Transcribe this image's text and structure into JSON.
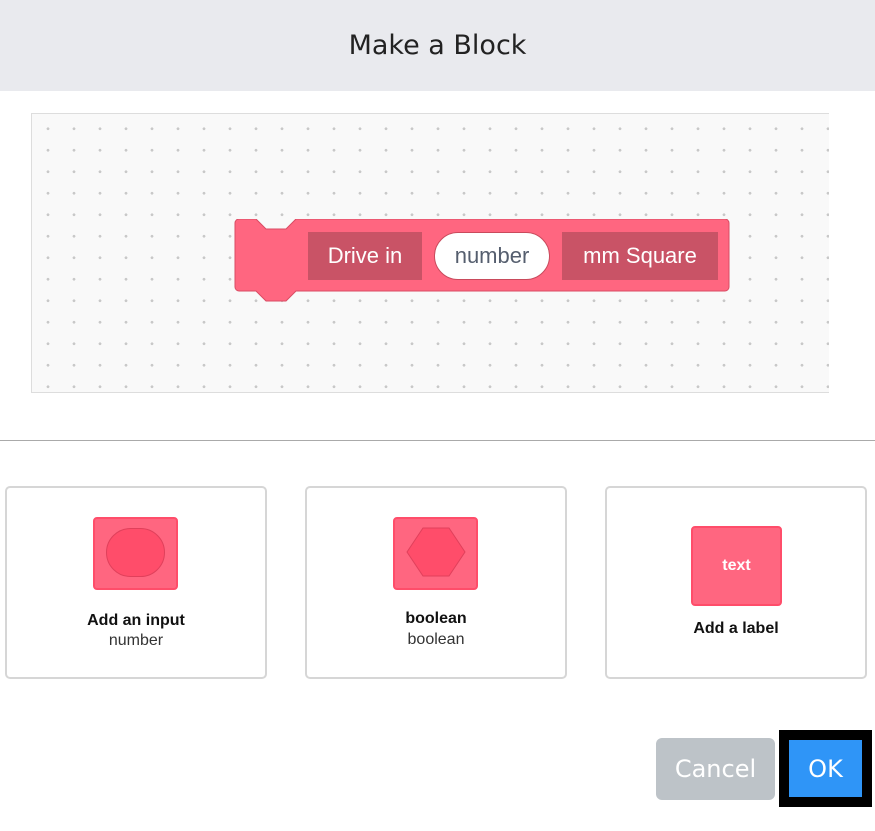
{
  "title": "Make a Block",
  "block": {
    "color": "#ff6680",
    "label1": "Drive in",
    "input": "number",
    "label2": "mm Square"
  },
  "options": [
    {
      "title": "Add an input",
      "subtitle": "number",
      "icon": "round-input-icon"
    },
    {
      "title": "boolean",
      "subtitle": "boolean",
      "icon": "hexagon-boolean-icon"
    },
    {
      "title": "Add a label",
      "icon_text": "text",
      "icon": "text-label-icon"
    }
  ],
  "buttons": {
    "cancel": "Cancel",
    "ok": "OK"
  },
  "colors": {
    "ok": "#2f95f7",
    "cancel": "#bdc3c8",
    "header": "#e9eaee"
  }
}
